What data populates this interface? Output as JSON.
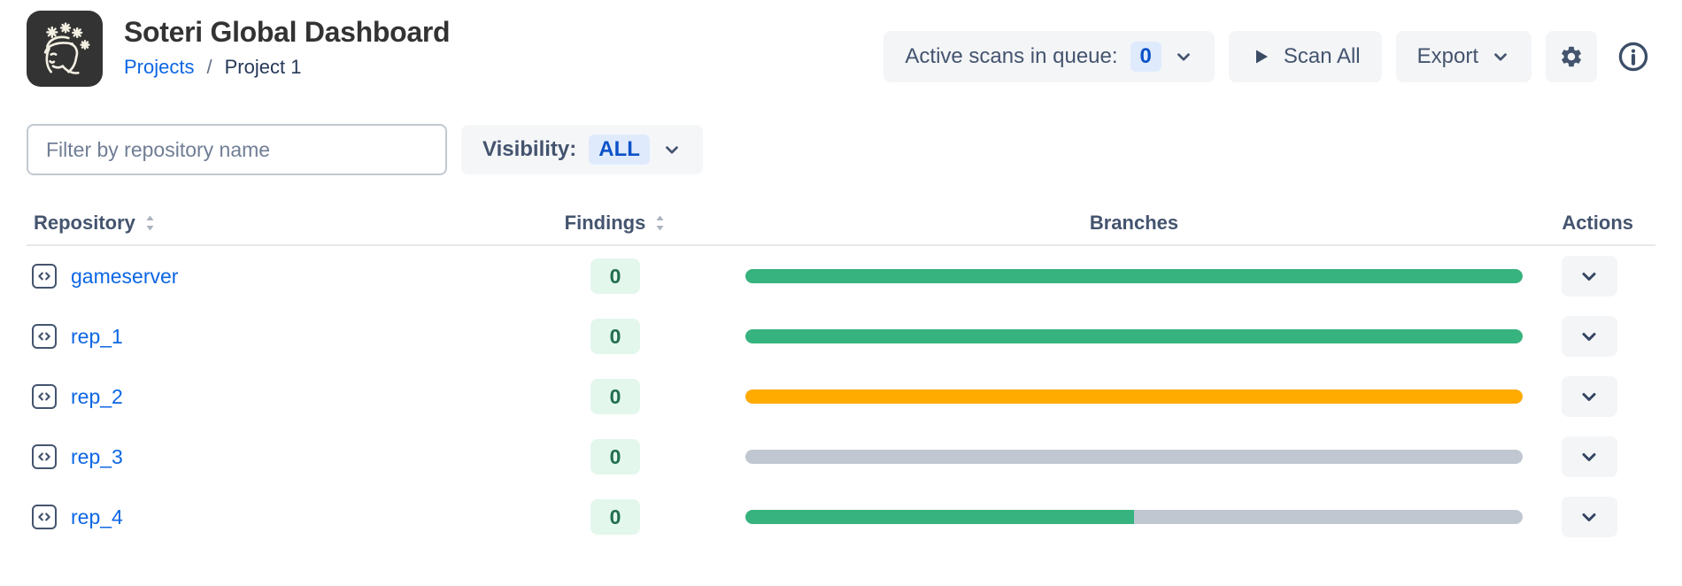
{
  "header": {
    "app_title": "Soteri Global Dashboard",
    "breadcrumb": {
      "parent": "Projects",
      "separator": "/",
      "current": "Project 1"
    },
    "actions": {
      "active_scans_label": "Active scans in queue:",
      "active_scans_count": "0",
      "scan_all_label": "Scan All",
      "export_label": "Export"
    }
  },
  "filters": {
    "search_placeholder": "Filter by repository name",
    "visibility_label": "Visibility:",
    "visibility_value": "ALL"
  },
  "table": {
    "columns": {
      "repository": "Repository",
      "findings": "Findings",
      "branches": "Branches",
      "actions": "Actions"
    },
    "bar_track_color": "#C1C7D0",
    "rows": [
      {
        "name": "gameserver",
        "findings": "0",
        "branch_bar": {
          "fill_percent": 100,
          "fill_color": "#36B37E"
        }
      },
      {
        "name": "rep_1",
        "findings": "0",
        "branch_bar": {
          "fill_percent": 100,
          "fill_color": "#36B37E"
        }
      },
      {
        "name": "rep_2",
        "findings": "0",
        "branch_bar": {
          "fill_percent": 100,
          "fill_color": "#FFAB00"
        }
      },
      {
        "name": "rep_3",
        "findings": "0",
        "branch_bar": {
          "fill_percent": 0,
          "fill_color": "#36B37E"
        }
      },
      {
        "name": "rep_4",
        "findings": "0",
        "branch_bar": {
          "fill_percent": 50,
          "fill_color": "#36B37E"
        }
      }
    ]
  },
  "colors": {
    "link_blue": "#0C66E4",
    "badge_blue_bg": "#DFEBFC",
    "badge_blue_text": "#0B52C8",
    "findings_green_bg": "#E3F7EC",
    "findings_green_text": "#216E4E",
    "bar_green": "#36B37E",
    "bar_orange": "#FFAB00",
    "bar_gray": "#C1C7D0",
    "button_gray_bg": "#F4F5F7",
    "text_slate": "#44546F"
  }
}
